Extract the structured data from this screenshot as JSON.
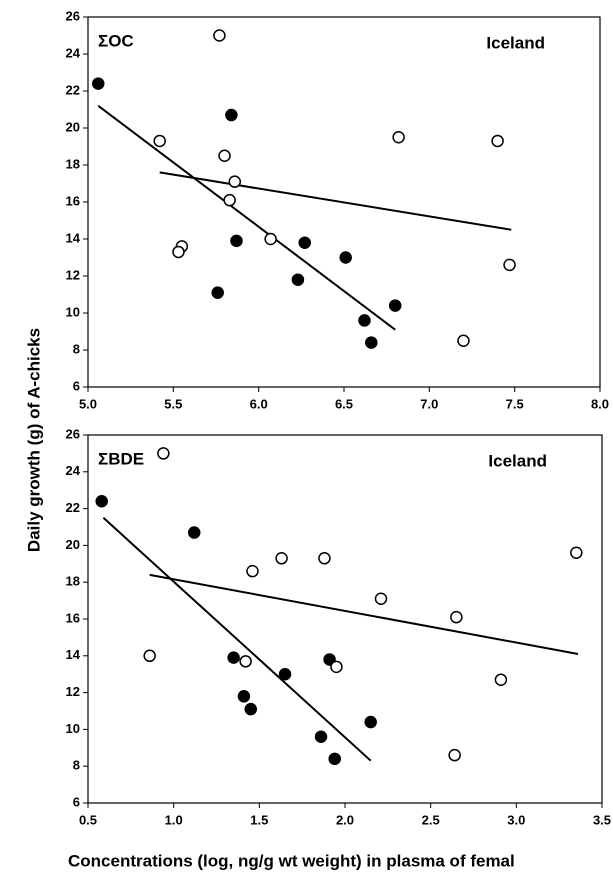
{
  "chart_data": [
    {
      "type": "scatter",
      "annotations": [
        "ΣOC",
        "Iceland"
      ],
      "ylabel": "Daily growth (g) of A-chicks",
      "xlim": [
        5.0,
        8.0
      ],
      "ylim": [
        6,
        26
      ],
      "xticks": [
        {
          "value": 5,
          "label": "5.0"
        },
        5.5,
        {
          "value": 6,
          "label": "6.0"
        },
        6.5,
        {
          "value": 7,
          "label": "7.0"
        },
        7.5,
        {
          "value": 8,
          "label": "8.0"
        }
      ],
      "yticks": [
        6,
        8,
        10,
        12,
        14,
        16,
        18,
        20,
        22,
        24,
        26
      ],
      "series": [
        {
          "color": "#000000",
          "marker_fill": "#000000",
          "x": [
            5.06,
            5.84,
            5.87,
            5.76,
            6.27,
            6.23,
            6.51,
            6.62,
            6.66,
            6.8
          ],
          "values": [
            22.4,
            20.7,
            13.9,
            11.1,
            13.8,
            11.8,
            13.0,
            9.6,
            8.4,
            10.4
          ],
          "fit": {
            "x": [
              5.06,
              6.8
            ],
            "values": [
              21.2,
              9.1
            ]
          }
        },
        {
          "color": "#000000",
          "marker_fill": "#ffffff",
          "x": [
            5.77,
            5.42,
            5.8,
            5.86,
            5.83,
            6.07,
            5.55,
            5.53,
            6.82,
            7.4,
            7.47,
            7.2
          ],
          "values": [
            25.0,
            19.3,
            18.5,
            17.1,
            16.1,
            14.0,
            13.6,
            13.3,
            19.5,
            19.3,
            12.6,
            8.5
          ],
          "fit": {
            "x": [
              5.42,
              7.48
            ],
            "values": [
              17.6,
              14.5
            ]
          }
        }
      ]
    },
    {
      "type": "scatter",
      "annotations": [
        "ΣBDE",
        "Iceland"
      ],
      "xlabel": "Concentrations (log, ng/g wt weight) in plasma of femal",
      "xlim": [
        0.5,
        3.5
      ],
      "ylim": [
        6,
        26
      ],
      "xticks": [
        0.5,
        {
          "value": 1,
          "label": "1.0"
        },
        1.5,
        {
          "value": 2,
          "label": "2.0"
        },
        2.5,
        {
          "value": 3,
          "label": "3.0"
        },
        3.5
      ],
      "yticks": [
        6,
        8,
        10,
        12,
        14,
        16,
        18,
        20,
        22,
        24,
        26
      ],
      "series": [
        {
          "color": "#000000",
          "marker_fill": "#000000",
          "x": [
            0.58,
            1.12,
            1.35,
            1.41,
            1.45,
            1.65,
            1.91,
            1.86,
            1.94,
            2.15
          ],
          "values": [
            22.4,
            20.7,
            13.9,
            11.8,
            11.1,
            13.0,
            13.8,
            9.6,
            8.4,
            10.4
          ],
          "fit": {
            "x": [
              0.59,
              2.15
            ],
            "values": [
              21.5,
              8.3
            ]
          }
        },
        {
          "color": "#000000",
          "marker_fill": "#ffffff",
          "x": [
            0.94,
            0.86,
            1.46,
            1.42,
            1.63,
            1.88,
            1.95,
            2.21,
            2.65,
            2.64,
            2.91,
            3.35
          ],
          "values": [
            25.0,
            14.0,
            18.6,
            13.7,
            19.3,
            19.3,
            13.4,
            17.1,
            16.1,
            8.6,
            12.7,
            19.6
          ],
          "fit": {
            "x": [
              0.86,
              3.36
            ],
            "values": [
              18.4,
              14.1
            ]
          }
        }
      ]
    }
  ]
}
